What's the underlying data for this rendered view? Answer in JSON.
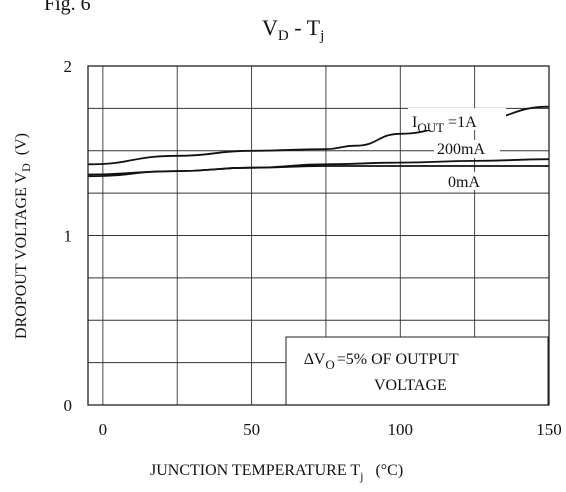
{
  "figure": {
    "label": "Fig. 6"
  },
  "chart_data": {
    "type": "line",
    "title": {
      "main": "V",
      "sub": "D",
      "sep": " - ",
      "main2": "T",
      "sub2": "j"
    },
    "xlabel": {
      "text": "JUNCTION TEMPERATURE T",
      "sub": "j",
      "unit": "(°C)"
    },
    "ylabel": {
      "text": "DROPOUT VOLTAGE V",
      "sub": "D",
      "unit": "(V)"
    },
    "xlim": [
      -5,
      150
    ],
    "ylim": [
      0,
      2
    ],
    "x_ticks": [
      {
        "value": 0,
        "label": "0"
      },
      {
        "value": 50,
        "label": "50"
      },
      {
        "value": 100,
        "label": "100"
      },
      {
        "value": 150,
        "label": "150"
      }
    ],
    "y_ticks": [
      {
        "value": 0,
        "label": "0"
      },
      {
        "value": 1,
        "label": "1"
      },
      {
        "value": 2,
        "label": "2"
      }
    ],
    "grid": true,
    "series": [
      {
        "name": "I_OUT=1A",
        "label": {
          "main": "I",
          "sub": "OUT",
          "rest": " =1A"
        },
        "points": [
          [
            -5,
            1.42
          ],
          [
            25,
            1.47
          ],
          [
            50,
            1.5
          ],
          [
            75,
            1.51
          ],
          [
            85,
            1.53
          ],
          [
            100,
            1.6
          ],
          [
            125,
            1.68
          ],
          [
            150,
            1.76
          ]
        ]
      },
      {
        "name": "200mA",
        "label": {
          "main": "200mA"
        },
        "points": [
          [
            -5,
            1.35
          ],
          [
            25,
            1.38
          ],
          [
            50,
            1.4
          ],
          [
            75,
            1.42
          ],
          [
            100,
            1.43
          ],
          [
            125,
            1.44
          ],
          [
            150,
            1.45
          ]
        ]
      },
      {
        "name": "0mA",
        "label": {
          "main": "0mA"
        },
        "points": [
          [
            -5,
            1.36
          ],
          [
            25,
            1.38
          ],
          [
            50,
            1.4
          ],
          [
            75,
            1.41
          ],
          [
            100,
            1.41
          ],
          [
            125,
            1.41
          ],
          [
            150,
            1.41
          ]
        ]
      }
    ],
    "annotation": {
      "symbol": "∆V",
      "sub": "O",
      "line1_rest": "=5% OF OUTPUT",
      "line2": "VOLTAGE"
    }
  }
}
